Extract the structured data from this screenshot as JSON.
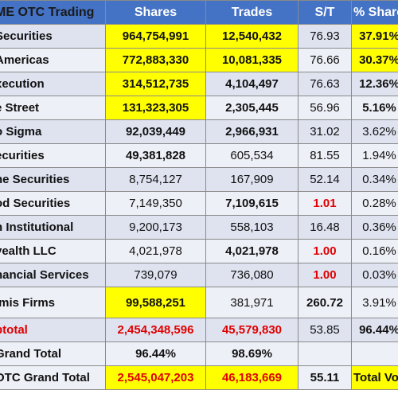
{
  "header": [
    "ME OTC Trading",
    "Shares",
    "Trades",
    "S/T",
    "% Shares"
  ],
  "rows": [
    {
      "name": "Securities",
      "shares": "964,754,991",
      "trades": "12,540,432",
      "st": "76.93",
      "pct": "37.91%"
    },
    {
      "name": "Americas",
      "shares": "772,883,330",
      "trades": "10,081,335",
      "st": "76.66",
      "pct": "30.37%"
    },
    {
      "name": "xecution",
      "shares": "314,512,735",
      "trades": "4,104,497",
      "st": "76.63",
      "pct": "12.36%"
    },
    {
      "name": "e Street",
      "shares": "131,323,305",
      "trades": "2,305,445",
      "st": "56.96",
      "pct": "5.16%"
    },
    {
      "name": "o Sigma",
      "shares": "92,039,449",
      "trades": "2,966,931",
      "st": "31.02",
      "pct": "3.62%"
    },
    {
      "name": "ecurities",
      "shares": "49,381,828",
      "trades": "605,534",
      "st": "81.55",
      "pct": "1.94%"
    },
    {
      "name": "ne Securities",
      "shares": "8,754,127",
      "trades": "167,909",
      "st": "52.14",
      "pct": "0.34%"
    },
    {
      "name": "od Securities",
      "shares": "7,149,350",
      "trades": "7,109,615",
      "st": "1.01",
      "pct": "0.28%"
    },
    {
      "name": "h Institutional",
      "shares": "9,200,173",
      "trades": "558,103",
      "st": "16.48",
      "pct": "0.36%"
    },
    {
      "name": "vealth LLC",
      "shares": "4,021,978",
      "trades": "4,021,978",
      "st": "1.00",
      "pct": "0.16%"
    },
    {
      "name": "nancial Services",
      "shares": "739,079",
      "trades": "736,080",
      "st": "1.00",
      "pct": "0.03%"
    },
    {
      "name": "imis Firms",
      "shares": "99,588,251",
      "trades": "381,971",
      "st": "260.72",
      "pct": "3.91%"
    },
    {
      "name": "btotal",
      "shares": "2,454,348,596",
      "trades": "45,579,830",
      "st": "53.85",
      "pct": "96.44%"
    },
    {
      "name": " Grand Total",
      "shares": "96.44%",
      "trades": "98.69%",
      "st": "",
      "pct": ""
    },
    {
      "name": "OTC Grand Total",
      "shares": "2,545,047,203",
      "trades": "46,183,669",
      "st": "55.11",
      "pct": "Total Volume"
    }
  ],
  "colors": {
    "header_bg": "#4472c4",
    "highlight": "#ffff00",
    "red_text": "#e00000",
    "row_odd": "#dfe3f0",
    "row_even": "#eef0f7"
  }
}
